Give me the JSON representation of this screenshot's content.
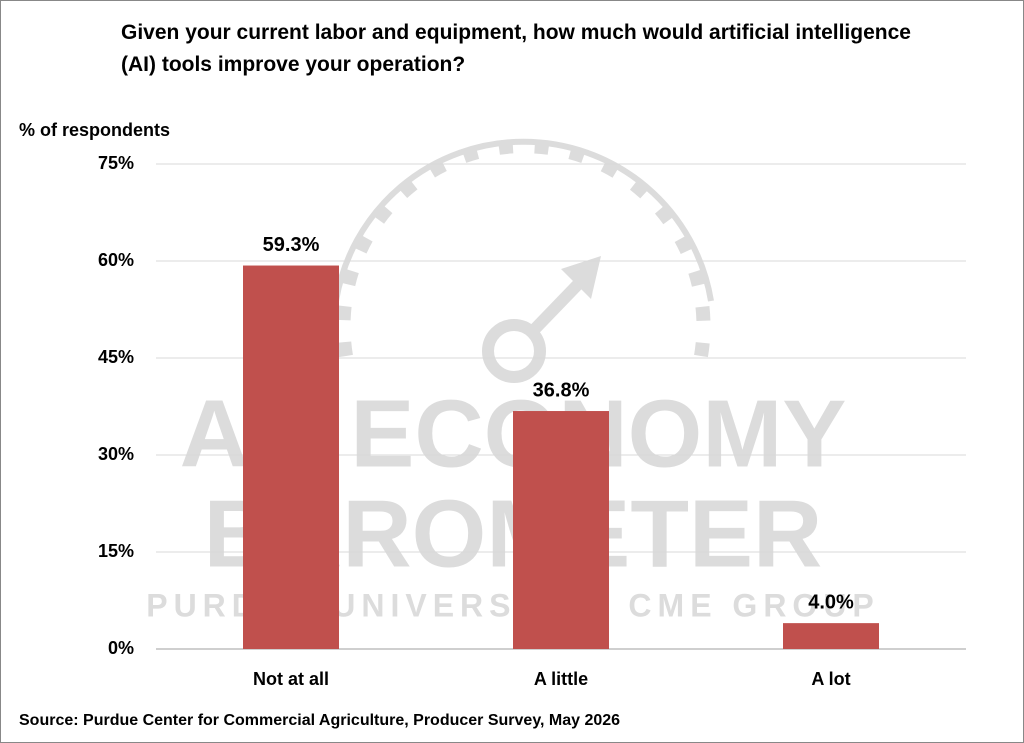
{
  "chart_data": {
    "type": "bar",
    "title": "Given your current labor and equipment, how much would artificial intelligence (AI) tools improve your operation?",
    "y_axis_label": "% of respondents",
    "categories": [
      "Not at all",
      "A little",
      "A lot"
    ],
    "values": [
      59.3,
      36.8,
      4.0
    ],
    "value_labels": [
      "59.3%",
      "36.8%",
      "4.0%"
    ],
    "color": "#c0504d",
    "ylim": [
      0,
      75
    ],
    "yticks": [
      {
        "value": 0,
        "label": "0%"
      },
      {
        "value": 15,
        "label": "15%"
      },
      {
        "value": 30,
        "label": "30%"
      },
      {
        "value": 45,
        "label": "45%"
      },
      {
        "value": 60,
        "label": "60%"
      },
      {
        "value": 75,
        "label": "75%"
      }
    ],
    "grid": true,
    "watermark": [
      "AG ECONOMY",
      "BAROMETER",
      "PURDUE UNIVERSITY | CME GROUP"
    ],
    "source": "Source: Purdue Center for Commercial Agriculture, Producer Survey, May 2026"
  }
}
